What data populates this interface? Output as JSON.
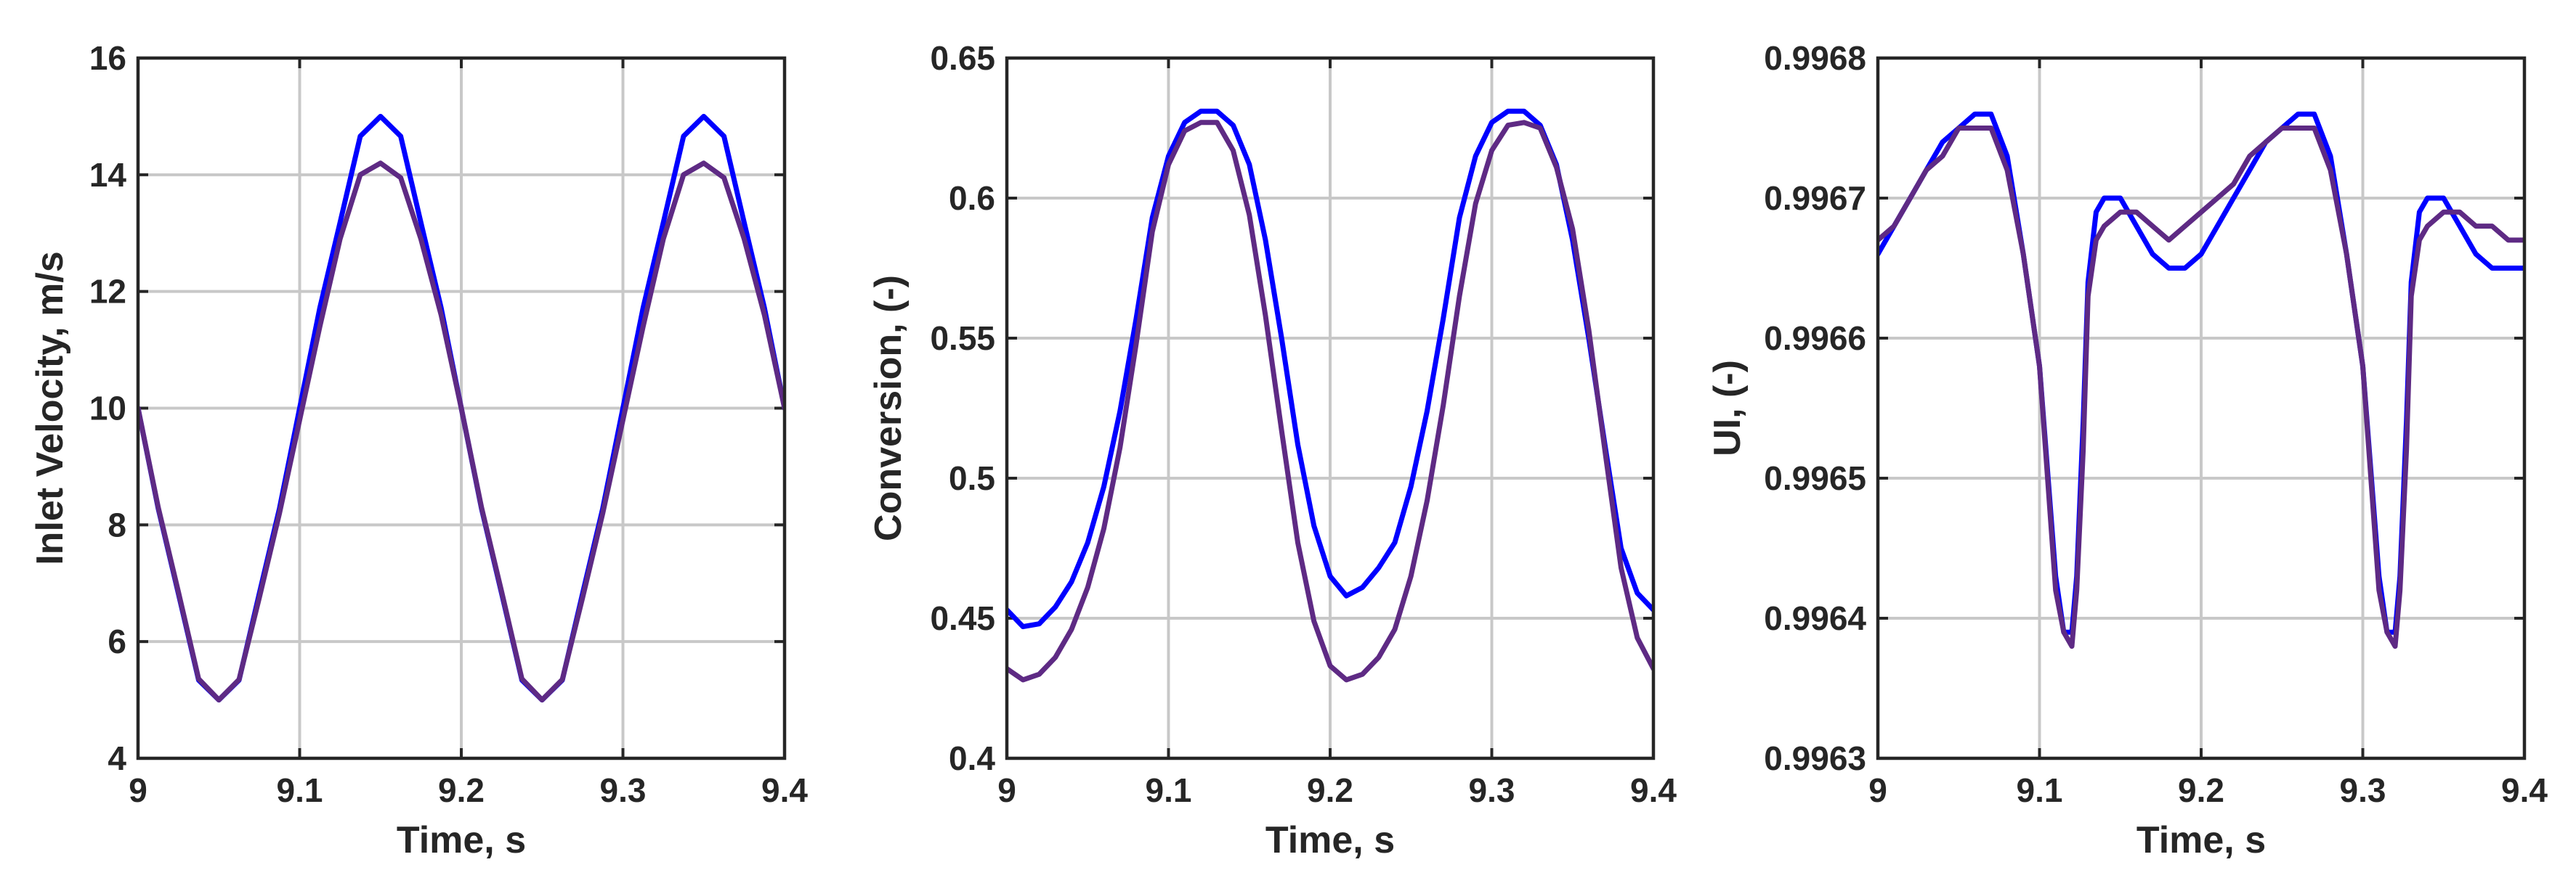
{
  "chart_data": [
    {
      "type": "line",
      "title": "",
      "xlabel": "Time, s",
      "ylabel": "Inlet Velocity, m/s",
      "xlim": [
        9,
        9.4
      ],
      "ylim": [
        4,
        16
      ],
      "xticks": [
        9,
        9.1,
        9.2,
        9.3,
        9.4
      ],
      "xtick_labels": [
        "9",
        "9.1",
        "9.2",
        "9.3",
        "9.4"
      ],
      "yticks": [
        4,
        6,
        8,
        10,
        12,
        14,
        16
      ],
      "ytick_labels": [
        "4",
        "6",
        "8",
        "10",
        "12",
        "14",
        "16"
      ],
      "grid": true,
      "series": [
        {
          "color": "#0000ff",
          "x": [
            9.0,
            9.0125,
            9.025,
            9.0375,
            9.05,
            9.0625,
            9.075,
            9.0875,
            9.1,
            9.1125,
            9.125,
            9.1375,
            9.15,
            9.1625,
            9.175,
            9.1875,
            9.2,
            9.2125,
            9.225,
            9.2375,
            9.25,
            9.2625,
            9.275,
            9.2875,
            9.3,
            9.3125,
            9.325,
            9.3375,
            9.35,
            9.3625,
            9.375,
            9.3875,
            9.4
          ],
          "y": [
            10.0,
            8.28,
            6.82,
            5.34,
            5.0,
            5.34,
            6.82,
            8.28,
            10.0,
            11.72,
            13.18,
            14.66,
            15.0,
            14.66,
            13.18,
            11.72,
            10.0,
            8.28,
            6.82,
            5.34,
            5.0,
            5.34,
            6.82,
            8.28,
            10.0,
            11.72,
            13.18,
            14.66,
            15.0,
            14.66,
            13.18,
            11.72,
            10.0
          ]
        },
        {
          "color": "#5e2a84",
          "x": [
            9.0,
            9.0125,
            9.025,
            9.0375,
            9.05,
            9.0625,
            9.075,
            9.0875,
            9.1,
            9.1125,
            9.125,
            9.1375,
            9.15,
            9.1625,
            9.175,
            9.1875,
            9.2,
            9.2125,
            9.225,
            9.2375,
            9.25,
            9.2625,
            9.275,
            9.2875,
            9.3,
            9.3125,
            9.325,
            9.3375,
            9.35,
            9.3625,
            9.375,
            9.3875,
            9.4
          ],
          "y": [
            10.0,
            8.3,
            6.85,
            5.36,
            5.0,
            5.35,
            6.75,
            8.2,
            9.8,
            11.4,
            12.9,
            14.0,
            14.2,
            13.95,
            12.9,
            11.6,
            10.0,
            8.3,
            6.85,
            5.36,
            5.0,
            5.35,
            6.75,
            8.2,
            9.8,
            11.4,
            12.9,
            14.0,
            14.2,
            13.95,
            12.9,
            11.6,
            10.0
          ]
        }
      ]
    },
    {
      "type": "line",
      "title": "",
      "xlabel": "Time, s",
      "ylabel": "Conversion, (-)",
      "xlim": [
        9,
        9.4
      ],
      "ylim": [
        0.4,
        0.65
      ],
      "xticks": [
        9,
        9.1,
        9.2,
        9.3,
        9.4
      ],
      "xtick_labels": [
        "9",
        "9.1",
        "9.2",
        "9.3",
        "9.4"
      ],
      "yticks": [
        0.4,
        0.45,
        0.5,
        0.55,
        0.6,
        0.65
      ],
      "ytick_labels": [
        "0.4",
        "0.45",
        "0.5",
        "0.55",
        "0.6",
        "0.65"
      ],
      "grid": true,
      "series": [
        {
          "color": "#0000ff",
          "x": [
            9.0,
            9.01,
            9.02,
            9.03,
            9.04,
            9.05,
            9.06,
            9.07,
            9.08,
            9.09,
            9.1,
            9.11,
            9.12,
            9.13,
            9.14,
            9.15,
            9.16,
            9.17,
            9.18,
            9.19,
            9.2,
            9.21,
            9.22,
            9.23,
            9.24,
            9.25,
            9.26,
            9.27,
            9.28,
            9.29,
            9.3,
            9.31,
            9.32,
            9.33,
            9.34,
            9.35,
            9.36,
            9.37,
            9.38,
            9.39,
            9.4
          ],
          "y": [
            0.453,
            0.447,
            0.448,
            0.454,
            0.463,
            0.477,
            0.497,
            0.524,
            0.557,
            0.593,
            0.615,
            0.627,
            0.631,
            0.631,
            0.626,
            0.612,
            0.585,
            0.55,
            0.512,
            0.483,
            0.465,
            0.458,
            0.461,
            0.468,
            0.477,
            0.497,
            0.524,
            0.557,
            0.593,
            0.615,
            0.627,
            0.631,
            0.631,
            0.626,
            0.612,
            0.585,
            0.55,
            0.512,
            0.475,
            0.459,
            0.453
          ]
        },
        {
          "color": "#5e2a84",
          "x": [
            9.0,
            9.01,
            9.02,
            9.03,
            9.04,
            9.05,
            9.06,
            9.07,
            9.08,
            9.09,
            9.1,
            9.11,
            9.12,
            9.13,
            9.14,
            9.15,
            9.16,
            9.17,
            9.18,
            9.19,
            9.2,
            9.21,
            9.22,
            9.23,
            9.24,
            9.25,
            9.26,
            9.27,
            9.28,
            9.29,
            9.3,
            9.31,
            9.32,
            9.33,
            9.34,
            9.35,
            9.36,
            9.37,
            9.38,
            9.39,
            9.4
          ],
          "y": [
            0.432,
            0.428,
            0.43,
            0.436,
            0.446,
            0.461,
            0.482,
            0.511,
            0.548,
            0.588,
            0.612,
            0.624,
            0.627,
            0.627,
            0.617,
            0.594,
            0.558,
            0.517,
            0.477,
            0.449,
            0.433,
            0.428,
            0.43,
            0.436,
            0.446,
            0.465,
            0.492,
            0.526,
            0.565,
            0.598,
            0.617,
            0.626,
            0.627,
            0.625,
            0.611,
            0.589,
            0.553,
            0.51,
            0.468,
            0.443,
            0.432
          ]
        }
      ]
    },
    {
      "type": "line",
      "title": "",
      "xlabel": "Time, s",
      "ylabel": "UI, (-)",
      "xlim": [
        9,
        9.4
      ],
      "ylim": [
        0.9963,
        0.9968
      ],
      "xticks": [
        9,
        9.1,
        9.2,
        9.3,
        9.4
      ],
      "xtick_labels": [
        "9",
        "9.1",
        "9.2",
        "9.3",
        "9.4"
      ],
      "yticks": [
        0.9963,
        0.9964,
        0.9965,
        0.9966,
        0.9967,
        0.9968
      ],
      "ytick_labels": [
        "0.9963",
        "0.9964",
        "0.9965",
        "0.9966",
        "0.9967",
        "0.9968"
      ],
      "grid": true,
      "series": [
        {
          "color": "#0000ff",
          "x": [
            9.0,
            9.01,
            9.02,
            9.03,
            9.04,
            9.05,
            9.06,
            9.07,
            9.08,
            9.09,
            9.1,
            9.11,
            9.115,
            9.12,
            9.123,
            9.127,
            9.13,
            9.135,
            9.14,
            9.15,
            9.16,
            9.17,
            9.18,
            9.19,
            9.2,
            9.21,
            9.22,
            9.23,
            9.24,
            9.25,
            9.26,
            9.27,
            9.28,
            9.29,
            9.3,
            9.31,
            9.315,
            9.32,
            9.323,
            9.327,
            9.33,
            9.335,
            9.34,
            9.35,
            9.36,
            9.37,
            9.38,
            9.39,
            9.4
          ],
          "y": [
            0.99666,
            0.99668,
            0.9967,
            0.99672,
            0.99674,
            0.99675,
            0.99676,
            0.99676,
            0.99673,
            0.99666,
            0.99658,
            0.99643,
            0.99639,
            0.99639,
            0.99643,
            0.99654,
            0.99664,
            0.99669,
            0.9967,
            0.9967,
            0.99668,
            0.99666,
            0.99665,
            0.99665,
            0.99666,
            0.99668,
            0.9967,
            0.99672,
            0.99674,
            0.99675,
            0.99676,
            0.99676,
            0.99673,
            0.99666,
            0.99658,
            0.99643,
            0.99639,
            0.99639,
            0.99643,
            0.99654,
            0.99664,
            0.99669,
            0.9967,
            0.9967,
            0.99668,
            0.99666,
            0.99665,
            0.99665,
            0.99665
          ]
        },
        {
          "color": "#5e2a84",
          "x": [
            9.0,
            9.01,
            9.02,
            9.03,
            9.04,
            9.05,
            9.06,
            9.07,
            9.08,
            9.09,
            9.1,
            9.11,
            9.115,
            9.12,
            9.123,
            9.127,
            9.13,
            9.135,
            9.14,
            9.15,
            9.16,
            9.17,
            9.18,
            9.19,
            9.2,
            9.21,
            9.22,
            9.23,
            9.24,
            9.25,
            9.26,
            9.27,
            9.28,
            9.29,
            9.3,
            9.31,
            9.315,
            9.32,
            9.323,
            9.327,
            9.33,
            9.335,
            9.34,
            9.35,
            9.36,
            9.37,
            9.38,
            9.39,
            9.4
          ],
          "y": [
            0.99667,
            0.99668,
            0.9967,
            0.99672,
            0.99673,
            0.99675,
            0.99675,
            0.99675,
            0.99672,
            0.99666,
            0.99658,
            0.99642,
            0.99639,
            0.99638,
            0.99642,
            0.99652,
            0.99663,
            0.99667,
            0.99668,
            0.99669,
            0.99669,
            0.99668,
            0.99667,
            0.99668,
            0.99669,
            0.9967,
            0.99671,
            0.99673,
            0.99674,
            0.99675,
            0.99675,
            0.99675,
            0.99672,
            0.99666,
            0.99658,
            0.99642,
            0.99639,
            0.99638,
            0.99642,
            0.99652,
            0.99663,
            0.99667,
            0.99668,
            0.99669,
            0.99669,
            0.99668,
            0.99668,
            0.99667,
            0.99667
          ]
        }
      ]
    }
  ]
}
